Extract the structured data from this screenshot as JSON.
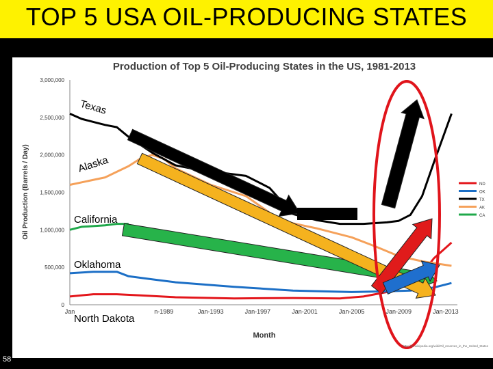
{
  "slide": {
    "title": "TOP 5 USA OIL-PRODUCING STATES",
    "page_number": "58",
    "source_url": "http://en.wikipedia.org/wiki/Oil_reserves_in_the_United_States"
  },
  "overlay_labels": {
    "texas": "Texas",
    "alaska": "Alaska",
    "california": "California",
    "oklahoma": "Oklahoma",
    "north_dakota": "North Dakota"
  },
  "colors": {
    "title_bg": "#fef200",
    "ND": "#e3161b",
    "OK": "#1c6fc6",
    "TX": "#000000",
    "AK": "#f5a15a",
    "CA": "#1fa84a",
    "arrow_black": "#000000",
    "arrow_orange": "#f5b21e",
    "arrow_green": "#27b34a",
    "arrow_red": "#e01b1b",
    "arrow_blue": "#1f6fce",
    "ellipse": "#e0141b"
  },
  "chart_data": {
    "type": "line",
    "title": "Production of Top 5 Oil-Producing States in the US, 1981-2013",
    "xlabel": "Month",
    "ylabel": "Oil Production (Barrels / Day)",
    "ylim": [
      0,
      3000000
    ],
    "xlim": [
      1981,
      2014
    ],
    "y_ticks": [
      "0",
      "500,000",
      "1,000,000",
      "1,500,000",
      "2,000,000",
      "2,500,000",
      "3,000,000"
    ],
    "y_tick_values": [
      0,
      500000,
      1000000,
      1500000,
      2000000,
      2500000,
      3000000
    ],
    "x_ticks": [
      "Jan",
      "n-1989",
      "Jan-1993",
      "Jan-1997",
      "Jan-2001",
      "Jan-2005",
      "Jan-2009",
      "Jan-2013"
    ],
    "x_tick_values": [
      1981,
      1989,
      1993,
      1997,
      2001,
      2005,
      2009,
      2013
    ],
    "grid": false,
    "legend": "right",
    "series": [
      {
        "name": "ND",
        "x": [
          1981,
          1983,
          1985,
          1987,
          1990,
          1995,
          2000,
          2004,
          2006,
          2008,
          2009,
          2010,
          2011,
          2012,
          2013.5
        ],
        "values": [
          110000,
          140000,
          140000,
          125000,
          100000,
          85000,
          90000,
          85000,
          110000,
          170000,
          220000,
          310000,
          420000,
          620000,
          830000
        ]
      },
      {
        "name": "OK",
        "x": [
          1981,
          1983,
          1985,
          1986,
          1988,
          1990,
          1995,
          2000,
          2005,
          2008,
          2010,
          2012,
          2013.5
        ],
        "values": [
          420000,
          440000,
          440000,
          380000,
          340000,
          300000,
          240000,
          190000,
          170000,
          180000,
          190000,
          230000,
          290000
        ]
      },
      {
        "name": "TX",
        "x": [
          1981,
          1982,
          1983,
          1984,
          1985,
          1986,
          1988,
          1990,
          1992,
          1994,
          1996,
          1998,
          2000,
          2002,
          2004,
          2006,
          2008,
          2009,
          2010,
          2011,
          2012,
          2013.5
        ],
        "values": [
          2550000,
          2480000,
          2440000,
          2400000,
          2370000,
          2240000,
          2030000,
          1860000,
          1800000,
          1760000,
          1720000,
          1560000,
          1210000,
          1130000,
          1080000,
          1080000,
          1100000,
          1120000,
          1200000,
          1450000,
          1900000,
          2550000
        ]
      },
      {
        "name": "AK",
        "x": [
          1981,
          1984,
          1986,
          1987,
          1988,
          1989,
          1990,
          1993,
          1996,
          1999,
          2002,
          2005,
          2007,
          2009,
          2011,
          2013.5
        ],
        "values": [
          1600000,
          1700000,
          1850000,
          1950000,
          2000000,
          1950000,
          1820000,
          1600000,
          1450000,
          1120000,
          1020000,
          900000,
          780000,
          650000,
          580000,
          520000
        ]
      },
      {
        "name": "CA",
        "x": [
          1981,
          1982,
          1983,
          1984,
          1985,
          1986
        ],
        "values": [
          1000000,
          1040000,
          1050000,
          1060000,
          1080000,
          1080000
        ]
      }
    ]
  }
}
